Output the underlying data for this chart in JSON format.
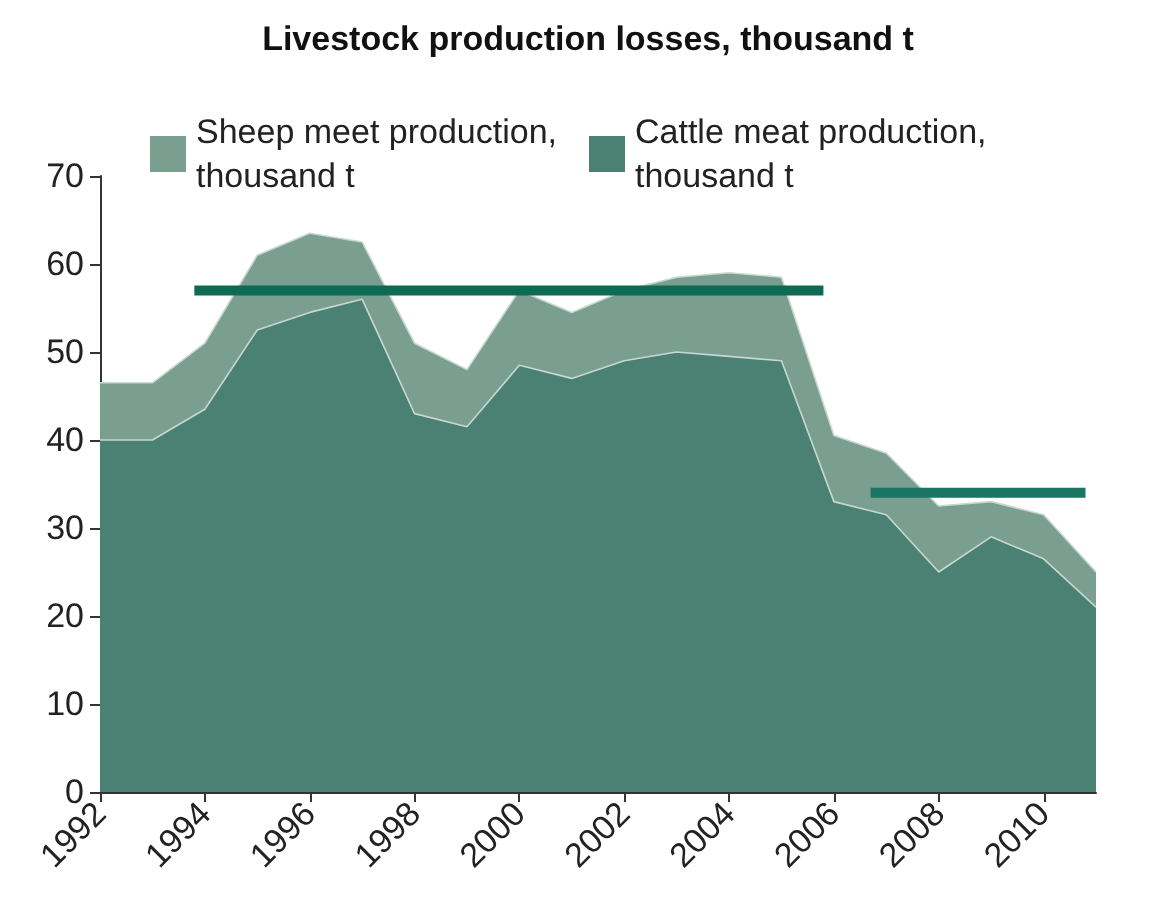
{
  "chart_data": {
    "type": "area",
    "title": "Livestock production losses, thousand t",
    "stacked": true,
    "legend": "top left",
    "grid": false,
    "marker": "none",
    "x": [
      1992,
      1993,
      1994,
      1995,
      1996,
      1997,
      1998,
      1999,
      2000,
      2001,
      2002,
      2003,
      2004,
      2005,
      2006,
      2007,
      2008,
      2009,
      2010,
      2011
    ],
    "xlim": [
      1992,
      2011
    ],
    "xticks": [
      1992,
      1994,
      1996,
      1998,
      2000,
      2002,
      2004,
      2006,
      2008,
      2010
    ],
    "ylim": [
      0,
      70
    ],
    "yticks": [
      0,
      10,
      20,
      30,
      40,
      50,
      60,
      70
    ],
    "series": [
      {
        "name": "Cattle meat production, thousand t",
        "color": "#4a8172",
        "values": [
          40,
          40,
          43.5,
          52.5,
          54.5,
          56,
          43,
          41.5,
          48.5,
          47,
          49,
          50,
          49.5,
          49,
          33,
          31.5,
          25,
          29,
          26.5,
          21
        ]
      },
      {
        "name": "Sheep meet production, thousand t",
        "color": "#7a9e90",
        "values": [
          6.5,
          6.5,
          7.5,
          8.5,
          9,
          6.5,
          8,
          6.5,
          8.5,
          7.5,
          8,
          8.5,
          9.5,
          9.5,
          7.5,
          7,
          7.5,
          4,
          5,
          4
        ]
      },
      {
        "type": "line",
        "color": "#0d6b53",
        "x": [
          1993.8,
          2005.8
        ],
        "values": [
          57,
          57
        ]
      },
      {
        "type": "line",
        "color": "#1a7562",
        "x": [
          2006.7,
          2010.8
        ],
        "values": [
          34,
          34
        ]
      }
    ]
  }
}
